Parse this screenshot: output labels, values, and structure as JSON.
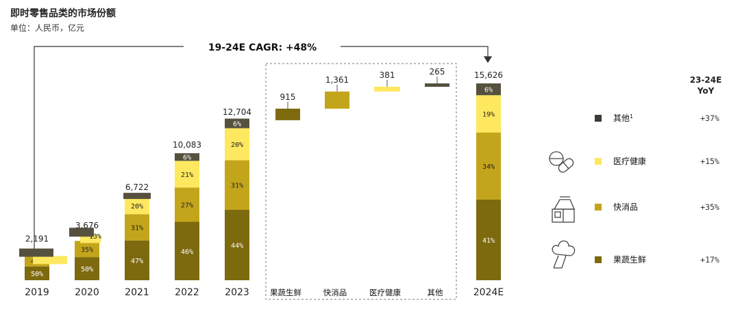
{
  "chart_data": {
    "type": "bar",
    "title": "即时零售品类的市场份额",
    "subtitle": "单位：人民币，亿元",
    "annotation": "19-24E CAGR: +48%",
    "stacked": true,
    "categories": [
      "2019",
      "2020",
      "2021",
      "2022",
      "2023",
      "2024E"
    ],
    "totals": [
      "2,191",
      "3,676",
      "6,722",
      "10,083",
      "12,704",
      "15,626"
    ],
    "total_values": [
      2191,
      3676,
      6722,
      10083,
      12704,
      15626
    ],
    "series": [
      {
        "name": "果蔬生鲜",
        "color": "#7d6a0f",
        "values": [
          50,
          50,
          47,
          46,
          44,
          41
        ],
        "labels": [
          "50%",
          "50%",
          "47%",
          "46%",
          "44%",
          "41%"
        ]
      },
      {
        "name": "快消品",
        "color": "#c3a51b",
        "values": [
          40,
          35,
          31,
          27,
          31,
          34
        ],
        "labels": [
          "40%",
          "35%",
          "31%",
          "27%",
          "31%",
          "34%"
        ]
      },
      {
        "name": "医疗健康",
        "color": "#fde85f",
        "values": [
          3,
          13,
          20,
          21,
          20,
          19
        ],
        "labels": [
          "",
          "13%",
          "20%",
          "21%",
          "20%",
          "19%"
        ]
      },
      {
        "name": "其他",
        "color": "#56513f",
        "values": [
          7,
          2,
          2,
          6,
          6,
          6
        ],
        "labels": [
          "",
          "",
          "",
          "6%",
          "6%",
          "6%"
        ]
      }
    ],
    "waterfall": {
      "categories": [
        "果蔬生鲜",
        "快消品",
        "医疗健康",
        "其他"
      ],
      "values": [
        915,
        1361,
        381,
        265
      ],
      "labels": [
        "915",
        "1,361",
        "381",
        "265"
      ],
      "base": 12704
    },
    "legend": {
      "header": [
        "23-24E",
        "YoY"
      ],
      "items": [
        {
          "name": "其他",
          "superscript": "1",
          "yoy": "+37%",
          "color": "#3b3a33",
          "icon": ""
        },
        {
          "name": "医疗健康",
          "yoy": "+15%",
          "color": "#fde85f",
          "icon": "pills-icon"
        },
        {
          "name": "快消品",
          "yoy": "+35%",
          "color": "#c3a51b",
          "icon": "milk-carton-icon"
        },
        {
          "name": "果蔬生鲜",
          "yoy": "+17%",
          "color": "#7d6a0f",
          "icon": "broccoli-icon"
        }
      ]
    },
    "ylim": [
      0,
      16000
    ]
  }
}
